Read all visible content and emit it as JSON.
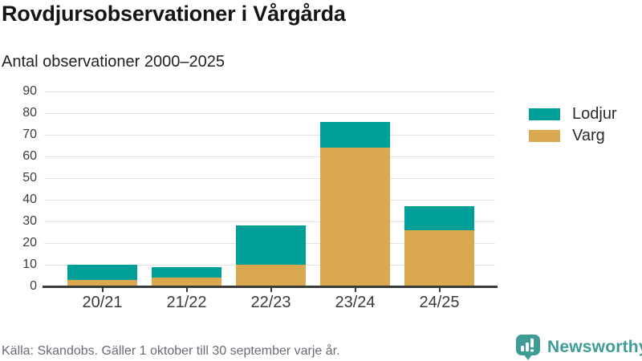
{
  "header": {
    "title": "Rovdjursobservationer i Vårgårda",
    "subtitle": "Antal observationer 2000–2025"
  },
  "footer": {
    "source": "Källa: Skandobs. Gäller 1 oktober till 30 september varje år."
  },
  "branding": {
    "name": "Newsworthy",
    "icon": "newsworthy-bar-chart-speech-bubble-icon",
    "color": "#3e9c96"
  },
  "colors": {
    "lodjur": "#00a099",
    "varg": "#d9a84f",
    "gridline": "#e1e1e1",
    "axis": "#3a3a3a",
    "muted_text": "#6a6a75"
  },
  "chart_data": {
    "type": "bar",
    "stacked": true,
    "title": "Rovdjursobservationer i Vårgårda",
    "subtitle": "Antal observationer 2000–2025",
    "categories": [
      "20/21",
      "21/22",
      "22/23",
      "23/24",
      "24/25"
    ],
    "series": [
      {
        "name": "Lodjur",
        "color": "#00a099",
        "values": [
          7,
          5,
          18,
          12,
          11
        ]
      },
      {
        "name": "Varg",
        "color": "#d9a84f",
        "values": [
          3,
          4,
          10,
          64,
          26
        ]
      }
    ],
    "stack_order_bottom_to_top": [
      "Varg",
      "Lodjur"
    ],
    "totals": [
      10,
      9,
      28,
      76,
      37
    ],
    "xlabel": "",
    "ylabel": "",
    "ylim": [
      0,
      90
    ],
    "yticks": [
      0,
      10,
      20,
      30,
      40,
      50,
      60,
      70,
      80,
      90
    ],
    "grid": true,
    "legend_position": "right"
  }
}
